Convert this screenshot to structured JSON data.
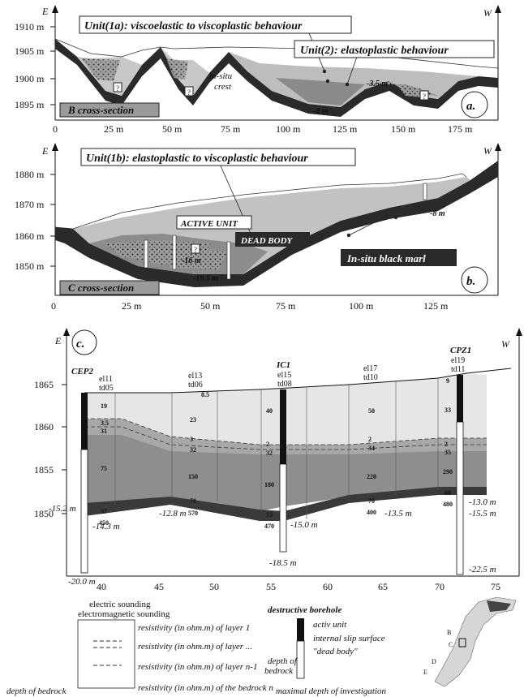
{
  "panel_a": {
    "dir_left": "E",
    "dir_right": "W",
    "y_ticks": [
      "1910 m",
      "1905 m",
      "1900 m",
      "1895 m"
    ],
    "x_ticks": [
      "0",
      "25 m",
      "50 m",
      "75 m",
      "100 m",
      "125 m",
      "150 m",
      "175 m"
    ],
    "unit1a": "Unit(1a): viscoelastic to viscoplastic behaviour",
    "unit2": "Unit(2): elastoplastic behaviour",
    "insitu": "in-situ",
    "crest": "crest",
    "depth1": "-3.5 m",
    "depth2": "-8 m",
    "qmark": "?",
    "section": "B cross-section",
    "panel": "a."
  },
  "panel_b": {
    "dir_left": "E",
    "dir_right": "W",
    "unit1b": "Unit(1b): elastoplastic to viscoplastic behaviour",
    "y_ticks": [
      "1880 m",
      "1870 m",
      "1860 m",
      "1850 m"
    ],
    "x_ticks": [
      "0",
      "25 m",
      "50 m",
      "75 m",
      "100 m",
      "125 m"
    ],
    "active": "ACTIVE UNIT",
    "dead": "DEAD BODY",
    "marl": "In-situ black marl",
    "depth1": "-16 m",
    "depth2": "-19.5 m",
    "depth3": "-8 m",
    "qmark": "?",
    "section": "C cross-section",
    "panel": "b."
  },
  "panel_c": {
    "dir_left": "E",
    "dir_right": "W",
    "panel": "c.",
    "y_ticks": [
      "1865",
      "1860",
      "1855",
      "1850"
    ],
    "x_ticks": [
      "40",
      "45",
      "50",
      "55",
      "60",
      "65",
      "70",
      "75"
    ],
    "boreholes": [
      {
        "name": "CEP2",
        "top": "",
        "bottom": "-20.0 m",
        "side": "-15.2 m"
      },
      {
        "name": "IC1",
        "top": "",
        "bottom": "-18.5 m",
        "side": ""
      },
      {
        "name": "CPZ1",
        "top": "",
        "bottom": "-22.5 m",
        "side": ""
      }
    ],
    "soundings": [
      {
        "el": "el11",
        "td": "td05",
        "vals": [
          "19",
          "3.5",
          "31",
          "75",
          "37",
          "450"
        ],
        "depth": "-14.3 m"
      },
      {
        "el": "el13",
        "td": "td06",
        "vals": [
          "8.5",
          "23",
          "3",
          "32",
          "150",
          "70",
          "570"
        ],
        "depth": "-12.8 m"
      },
      {
        "el": "el15",
        "td": "td08",
        "vals": [
          "40",
          "2",
          "32",
          "180",
          "53",
          "470"
        ],
        "depth": "-15.0 m"
      },
      {
        "el": "el17",
        "td": "td10",
        "vals": [
          "50",
          "2",
          "34",
          "220",
          "70",
          "400"
        ],
        "depth": "-13.5 m"
      },
      {
        "el": "el19",
        "td": "td11",
        "vals": [
          "9",
          "33",
          "2",
          "35",
          "290",
          "60",
          "480"
        ],
        "depth1": "-13.0 m",
        "depth2": "-15.5 m"
      }
    ]
  },
  "legend": {
    "es": "electric sounding",
    "ems": "electromagnetic sounding",
    "r1": "resistivity (in ohm.m) of layer 1",
    "r2": "resistivity (in ohm.m) of layer ...",
    "r3": "resistivity (in ohm.m) of layer n-1",
    "r4": "resistivity (in ohm.m) of the bedrock n",
    "dob": "depth of bedrock",
    "db_title": "destructive borehole",
    "db1": "activ unit",
    "db2": "internal slip surface",
    "db3": "\"dead body\"",
    "db4a": "depth of",
    "db4b": "bedrock",
    "db5": "maximal depth of investigation",
    "map_labels": [
      "B",
      "C",
      "D",
      "E"
    ]
  }
}
